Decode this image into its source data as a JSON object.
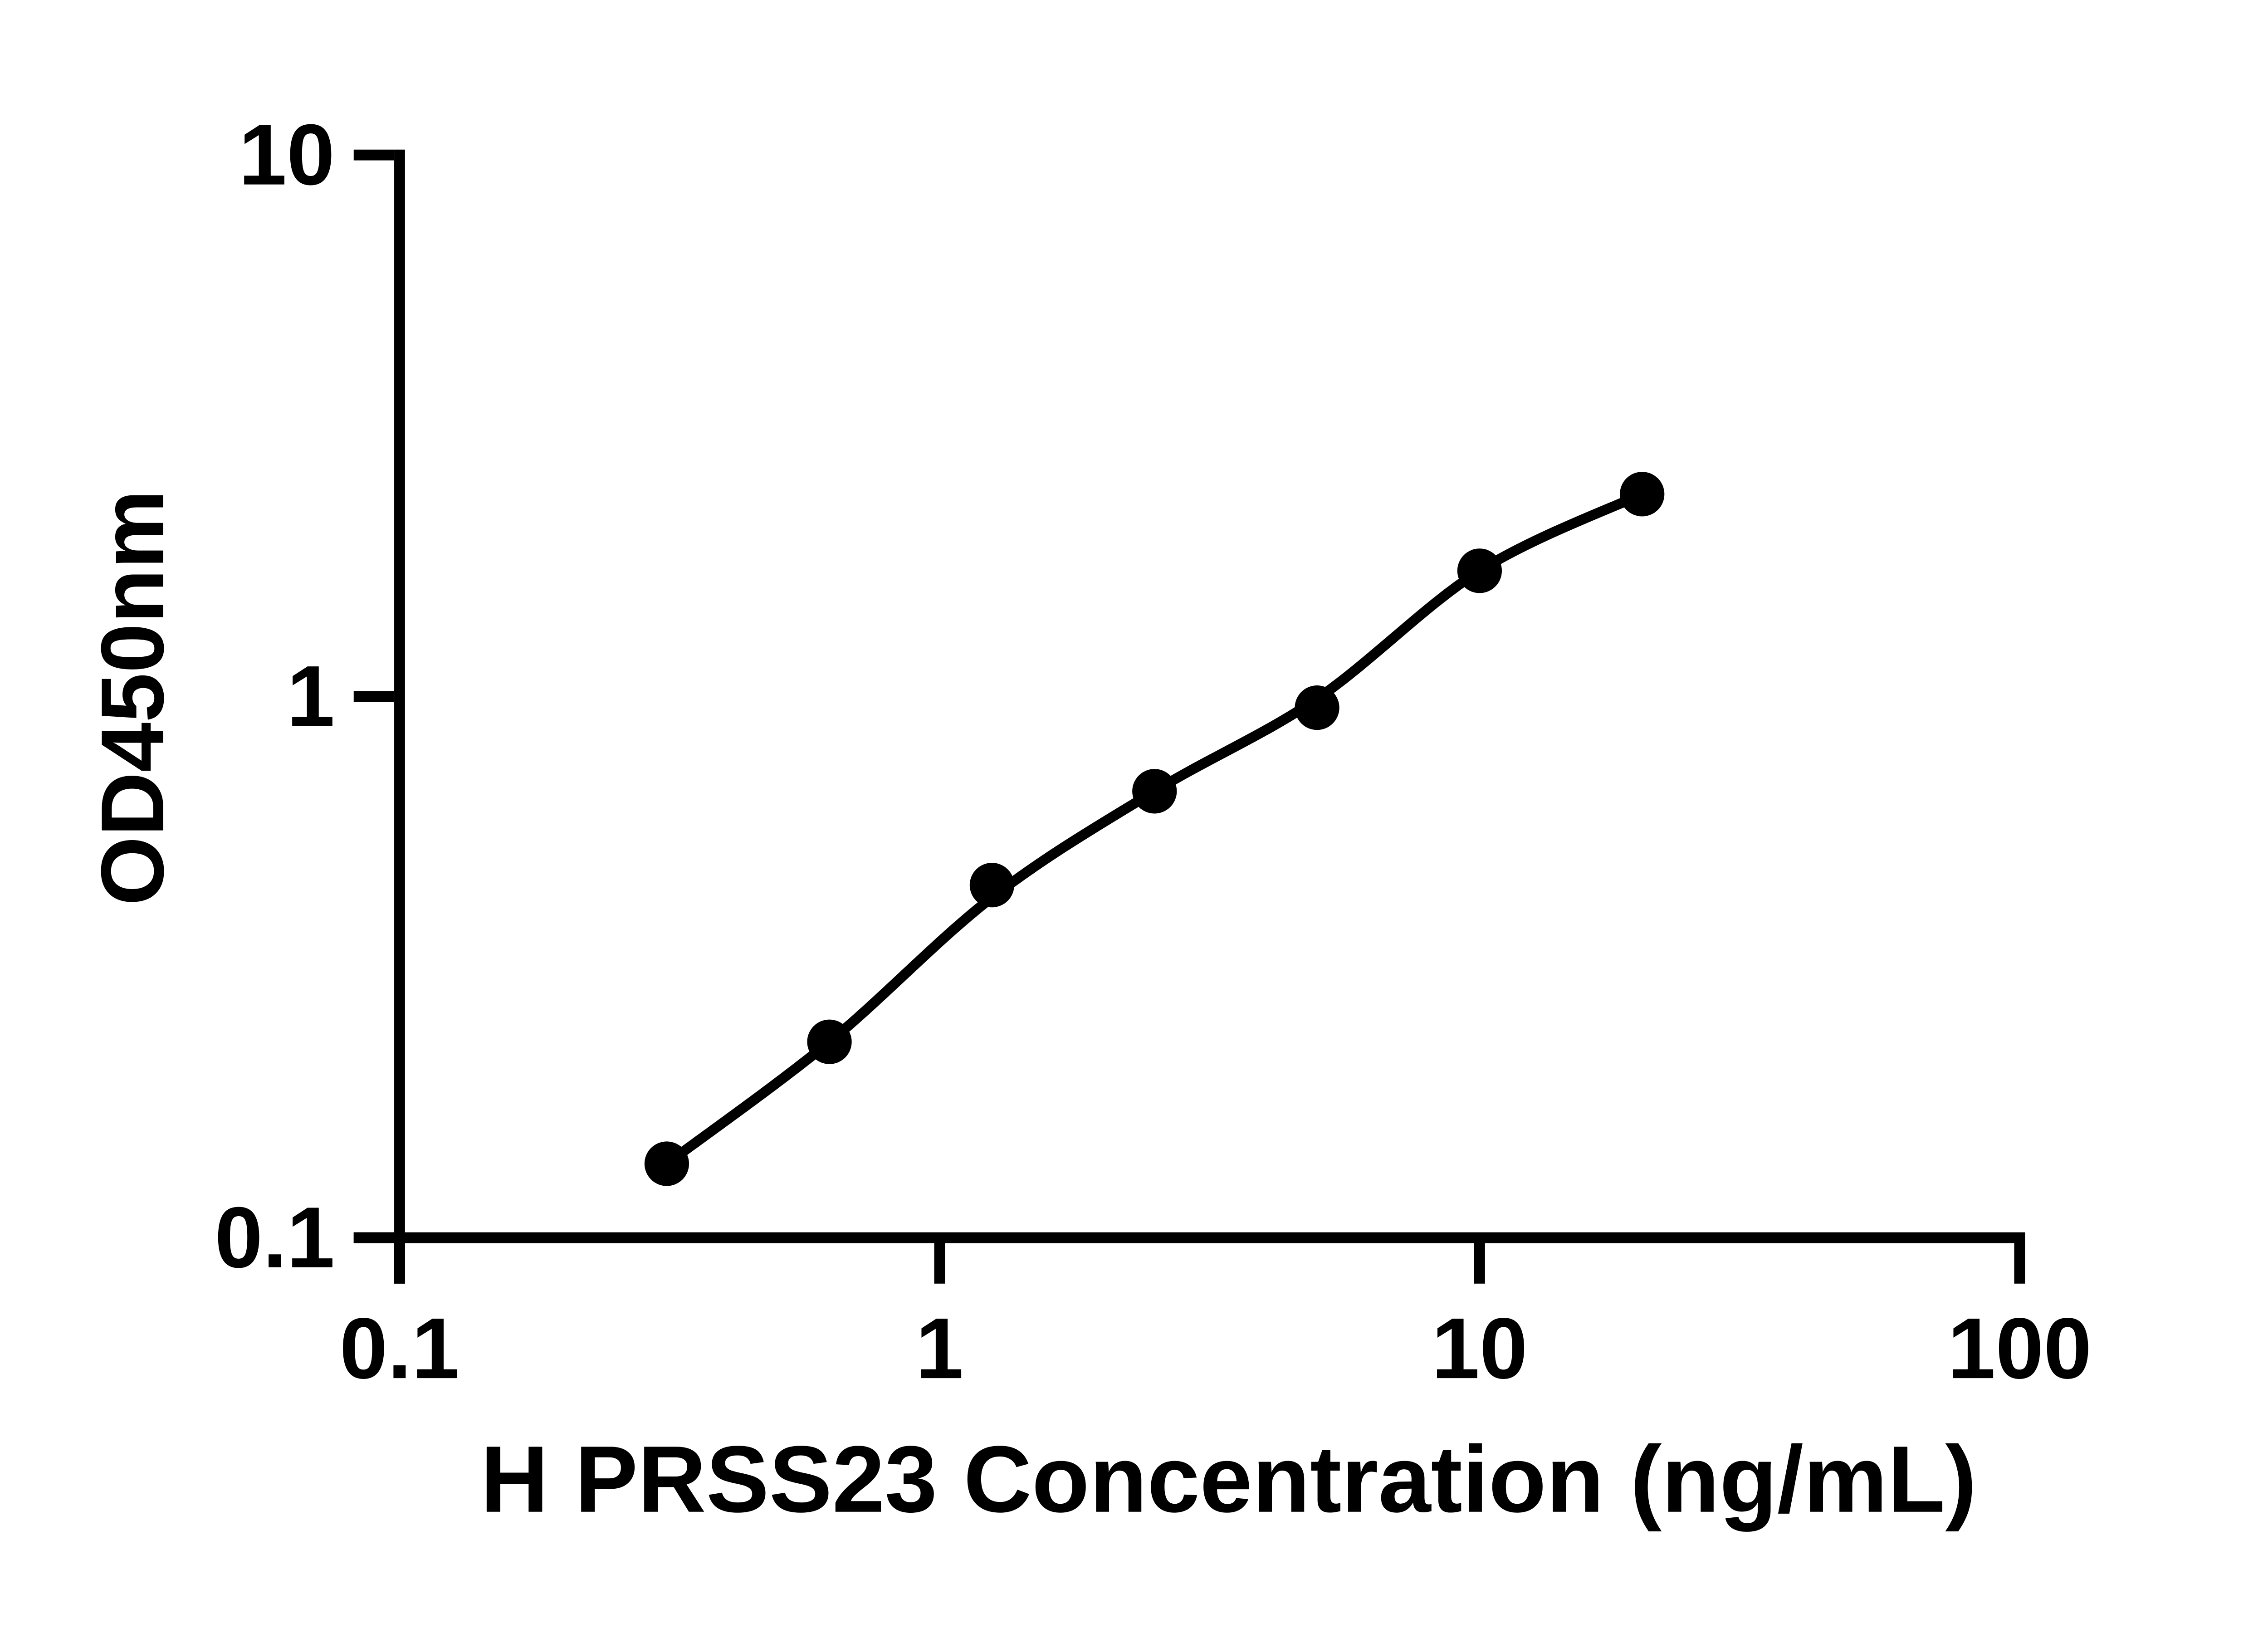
{
  "figure": {
    "background": "#ffffff",
    "foreground": "#000000"
  },
  "chart_data": {
    "type": "scatter",
    "title": "",
    "xlabel": "H PRSS23 Concentration (ng/mL)",
    "ylabel": "OD450nm",
    "x_scale": "log",
    "y_scale": "log",
    "xlim": [
      0.1,
      100
    ],
    "ylim": [
      0.1,
      10
    ],
    "grid": false,
    "legend": "none",
    "axis_color": "#000000",
    "marker_color": "#000000",
    "line_color": "#000000",
    "x_ticks": [
      {
        "value": 0.1,
        "label": "0.1"
      },
      {
        "value": 1,
        "label": "1"
      },
      {
        "value": 10,
        "label": "10"
      },
      {
        "value": 100,
        "label": "100"
      }
    ],
    "y_ticks": [
      {
        "value": 0.1,
        "label": "0.1"
      },
      {
        "value": 1,
        "label": "1"
      },
      {
        "value": 10,
        "label": "10"
      }
    ],
    "series": [
      {
        "name": "standard-points",
        "type": "scatter",
        "x": [
          0.3125,
          0.625,
          1.25,
          2.5,
          5,
          10,
          20
        ],
        "y": [
          0.137,
          0.23,
          0.448,
          0.668,
          0.953,
          1.706,
          2.364
        ]
      },
      {
        "name": "fit-curve",
        "type": "line",
        "x": [
          0.3125,
          0.625,
          1.25,
          2.5,
          5,
          10,
          20
        ],
        "y": [
          0.137,
          0.23,
          0.425,
          0.668,
          0.99,
          1.706,
          2.364
        ]
      }
    ]
  }
}
